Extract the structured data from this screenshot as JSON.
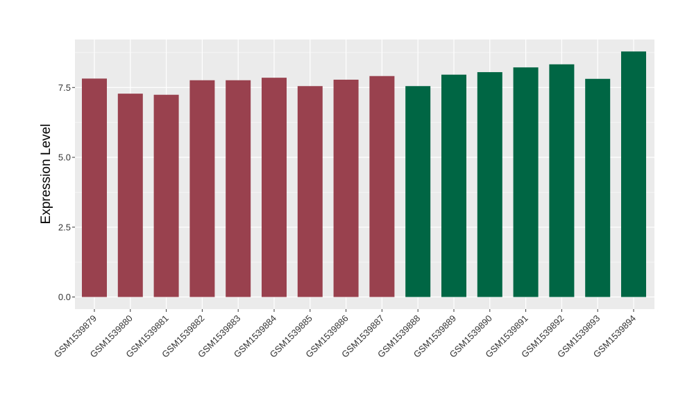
{
  "chart_data": {
    "type": "bar",
    "title": "",
    "xlabel": "",
    "ylabel": "Expression Level",
    "ylim": [
      0,
      9.2
    ],
    "yticks": [
      0.0,
      2.5,
      5.0,
      7.5
    ],
    "ytick_labels": [
      "0.0",
      "2.5",
      "5.0",
      "7.5"
    ],
    "grid": true,
    "legend": "none",
    "categories": [
      "GSM1539879",
      "GSM1539880",
      "GSM1539881",
      "GSM1539882",
      "GSM1539883",
      "GSM1539884",
      "GSM1539885",
      "GSM1539886",
      "GSM1539887",
      "GSM1539888",
      "GSM1539889",
      "GSM1539890",
      "GSM1539891",
      "GSM1539892",
      "GSM1539893",
      "GSM1539894"
    ],
    "values": [
      7.82,
      7.28,
      7.24,
      7.76,
      7.76,
      7.85,
      7.55,
      7.78,
      7.91,
      7.55,
      7.96,
      8.05,
      8.22,
      8.33,
      7.81,
      8.79
    ],
    "groups": [
      "g1",
      "g1",
      "g1",
      "g1",
      "g1",
      "g1",
      "g1",
      "g1",
      "g1",
      "g2",
      "g2",
      "g2",
      "g2",
      "g2",
      "g2",
      "g2"
    ],
    "colors": {
      "g1": "#99414e",
      "g2": "#006644",
      "panel": "#ebebeb",
      "grid_major": "#ffffff",
      "grid_minor": "#f5f5f5"
    }
  }
}
